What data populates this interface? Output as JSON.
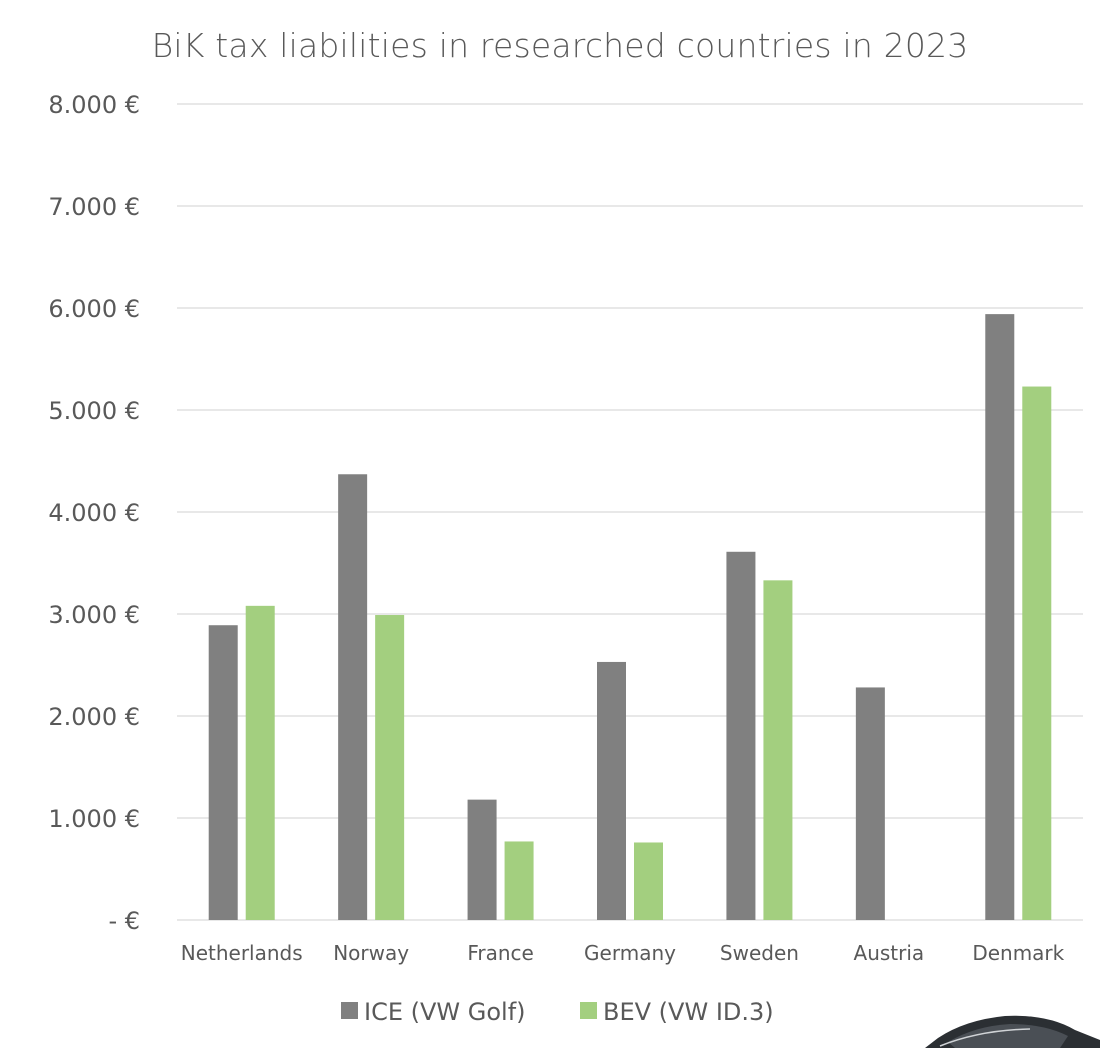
{
  "chart_data": {
    "type": "bar",
    "title": "BiK tax liabilities in researched countries in 2023",
    "xlabel": "",
    "ylabel": "",
    "categories": [
      "Netherlands",
      "Norway",
      "France",
      "Germany",
      "Sweden",
      "Austria",
      "Denmark"
    ],
    "series": [
      {
        "name": "ICE  (VW Golf)",
        "color": "#808080",
        "values": [
          2890,
          4370,
          1180,
          2530,
          3610,
          2280,
          5940
        ]
      },
      {
        "name": "BEV  (VW ID.3)",
        "color": "#a3cf7f",
        "values": [
          3080,
          2990,
          770,
          760,
          3330,
          0,
          5230
        ]
      }
    ],
    "ylim": [
      0,
      8000
    ],
    "yticks": [
      0,
      1000,
      2000,
      3000,
      4000,
      5000,
      6000,
      7000,
      8000
    ],
    "ytick_labels": [
      "-   €",
      "1.000 €",
      "2.000 €",
      "3.000 €",
      "4.000 €",
      "5.000 €",
      "6.000 €",
      "7.000 €",
      "8.000 €"
    ],
    "grid": true,
    "gridline_color": "#d9d9d9",
    "legend_position": "bottom"
  }
}
